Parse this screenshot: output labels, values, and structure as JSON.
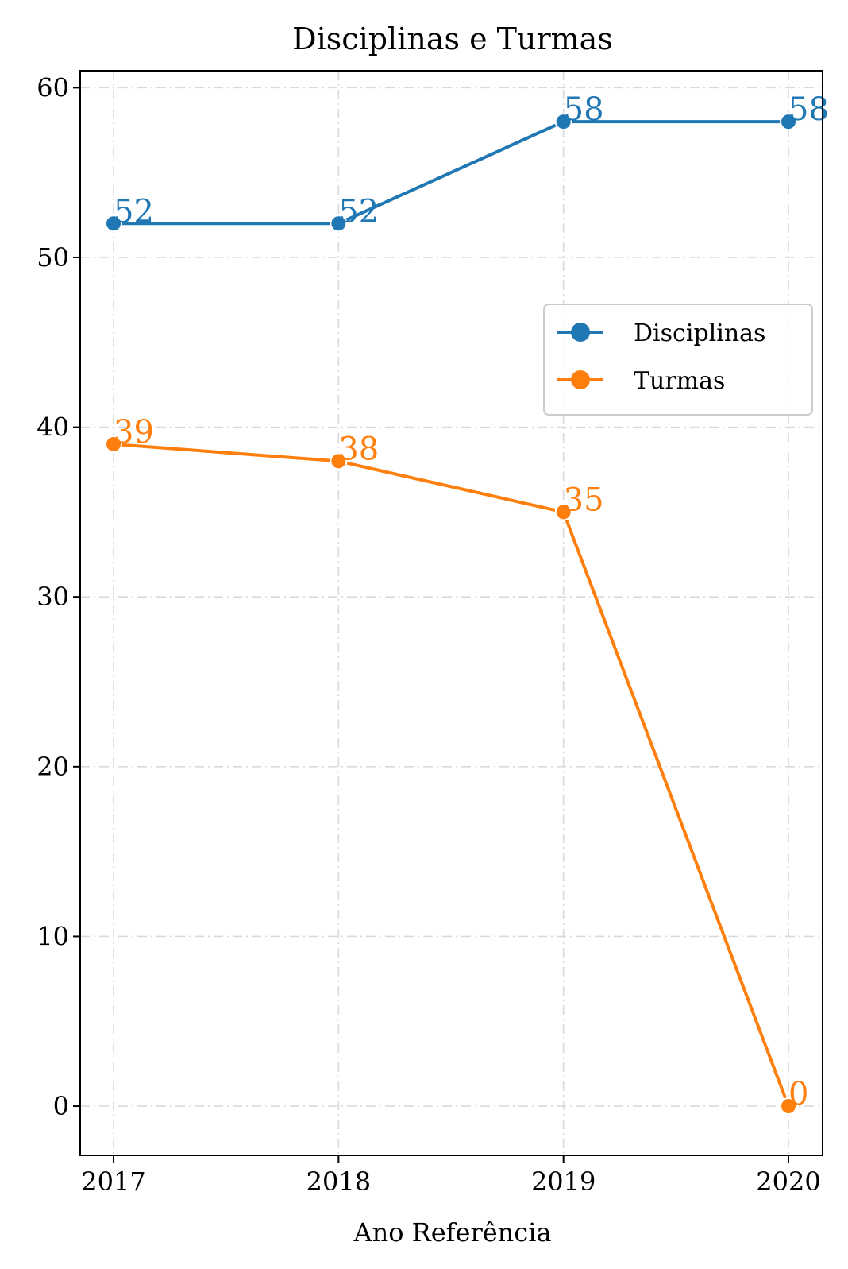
{
  "chart_data": {
    "type": "line",
    "title": "Disciplinas e Turmas",
    "xlabel": "Ano Referência",
    "ylabel": "",
    "categories": [
      "2017",
      "2018",
      "2019",
      "2020"
    ],
    "ylim": [
      -2.9,
      61.0
    ],
    "yticks": [
      0,
      10,
      20,
      30,
      40,
      50,
      60
    ],
    "grid": true,
    "legend_position": "right",
    "series": [
      {
        "name": "Disciplinas",
        "color": "#1f77b4",
        "values": [
          52,
          52,
          58,
          58
        ]
      },
      {
        "name": "Turmas",
        "color": "#ff7f0e",
        "values": [
          39,
          38,
          35,
          0
        ]
      }
    ]
  }
}
